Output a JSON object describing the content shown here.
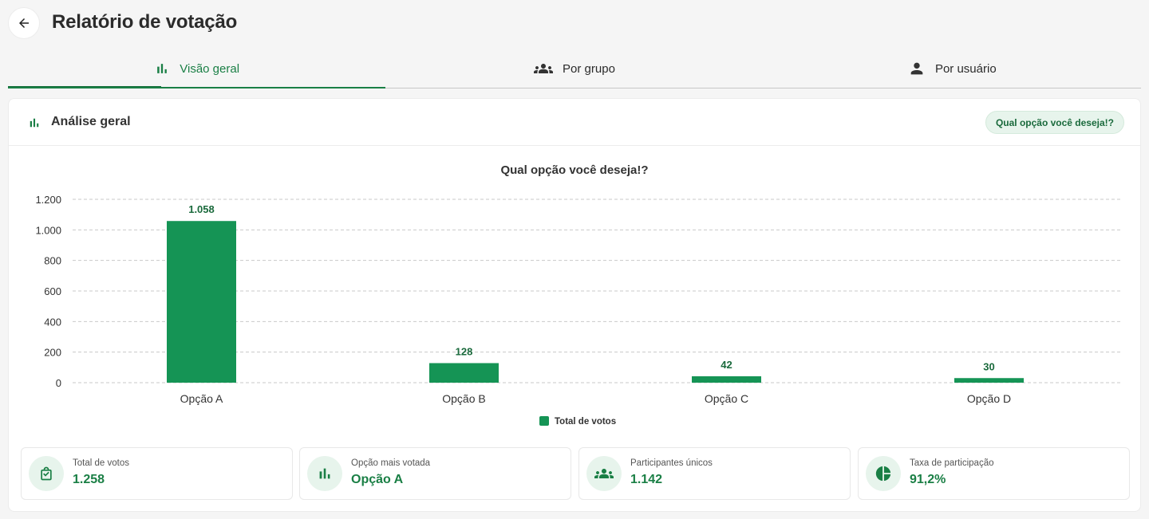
{
  "header": {
    "title": "Relatório de votação"
  },
  "tabs": [
    {
      "label": "Visão geral",
      "icon": "bar-chart-icon",
      "active": true
    },
    {
      "label": "Por grupo",
      "icon": "group-icon",
      "active": false
    },
    {
      "label": "Por usuário",
      "icon": "person-icon",
      "active": false
    }
  ],
  "card": {
    "title": "Análise geral",
    "question_chip": "Qual opção você deseja!?"
  },
  "chart_data": {
    "type": "bar",
    "title": "Qual opção você deseja!?",
    "categories": [
      "Opção A",
      "Opção B",
      "Opção C",
      "Opção D"
    ],
    "series": [
      {
        "name": "Total de votos",
        "values": [
          1058,
          128,
          42,
          30
        ],
        "value_labels": [
          "1.058",
          "128",
          "42",
          "30"
        ]
      }
    ],
    "ylim": [
      0,
      1200
    ],
    "y_ticks": [
      0,
      200,
      400,
      600,
      800,
      1000,
      1200
    ],
    "y_tick_labels": [
      "0",
      "200",
      "400",
      "600",
      "800",
      "1.000",
      "1.200"
    ],
    "grid": true,
    "legend": "bottom-center",
    "xlabel": "",
    "ylabel": ""
  },
  "stats": [
    {
      "label": "Total de votos",
      "value": "1.258",
      "icon": "checked-bag-icon"
    },
    {
      "label": "Opção mais votada",
      "value": "Opção A",
      "icon": "bar-chart-icon"
    },
    {
      "label": "Participantes únicos",
      "value": "1.142",
      "icon": "group-icon"
    },
    {
      "label": "Taxa de participação",
      "value": "91,2%",
      "icon": "pie-chart-icon"
    }
  ],
  "colors": {
    "accent": "#1a7f45",
    "bar": "#159455",
    "chip_bg": "#e7f4ec"
  }
}
